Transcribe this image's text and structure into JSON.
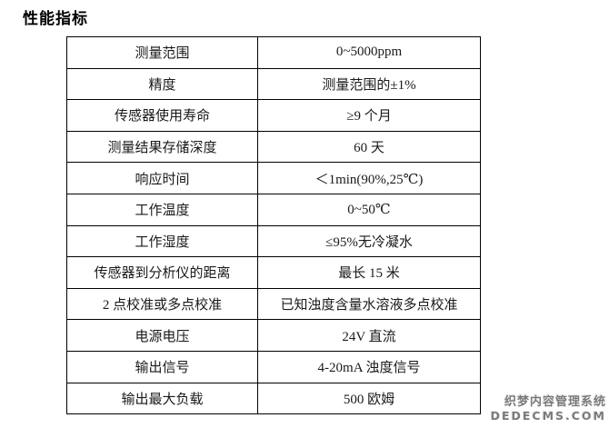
{
  "page": {
    "heading": "性能指标"
  },
  "spec_table": {
    "rows": [
      {
        "label": "测量范围",
        "value": "0~5000ppm"
      },
      {
        "label": "精度",
        "value": "测量范围的±1%"
      },
      {
        "label": "传感器使用寿命",
        "value": "≥9 个月"
      },
      {
        "label": "测量结果存储深度",
        "value": "60 天"
      },
      {
        "label": "响应时间",
        "value": "＜1min(90%,25℃)"
      },
      {
        "label": "工作温度",
        "value": "0~50℃"
      },
      {
        "label": "工作湿度",
        "value": "≤95%无冷凝水"
      },
      {
        "label": "传感器到分析仪的距离",
        "value": "最长 15 米"
      },
      {
        "label": "2 点校准或多点校准",
        "value": "已知浊度含量水溶液多点校准"
      },
      {
        "label": "电源电压",
        "value": "24V 直流"
      },
      {
        "label": "输出信号",
        "value": "4-20mA 浊度信号"
      },
      {
        "label": "输出最大负载",
        "value": "500 欧姆"
      }
    ]
  },
  "watermark": {
    "line1": "织梦内容管理系统",
    "line2": "DEDECMS.COM",
    "color": "#7a7a7a"
  }
}
